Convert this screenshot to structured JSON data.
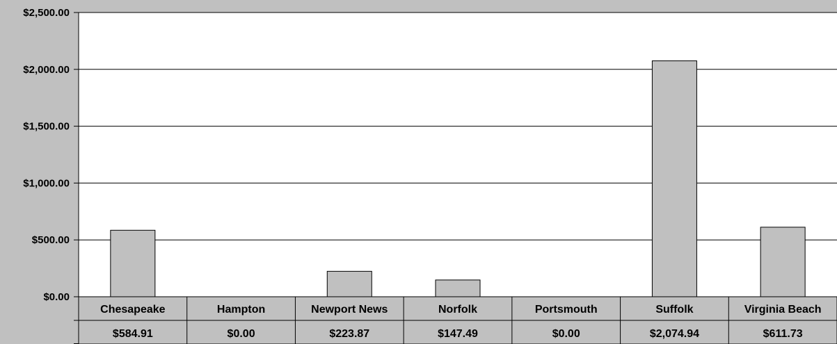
{
  "chart_data": {
    "type": "bar",
    "title": "",
    "xlabel": "",
    "ylabel": "",
    "categories": [
      "Chesapeake",
      "Hampton",
      "Newport News",
      "Norfolk",
      "Portsmouth",
      "Suffolk",
      "Virginia Beach"
    ],
    "values": [
      584.91,
      0.0,
      223.87,
      147.49,
      0.0,
      2074.94,
      611.73
    ],
    "value_labels": [
      "$584.91",
      "$0.00",
      "$223.87",
      "$147.49",
      "$0.00",
      "$2,074.94",
      "$611.73"
    ],
    "ylim": [
      0,
      2500
    ],
    "yticks": [
      0,
      500,
      1000,
      1500,
      2000,
      2500
    ],
    "ytick_labels": [
      "$0.00",
      "$500.00",
      "$1,000.00",
      "$1,500.00",
      "$2,000.00",
      "$2,500.00"
    ],
    "grid": true,
    "data_table": true,
    "colors": {
      "background": "#c0c0c0",
      "plot_area": "#ffffff",
      "bar_fill": "#c0c0c0",
      "bar_stroke": "#000000",
      "gridline": "#000000"
    }
  }
}
